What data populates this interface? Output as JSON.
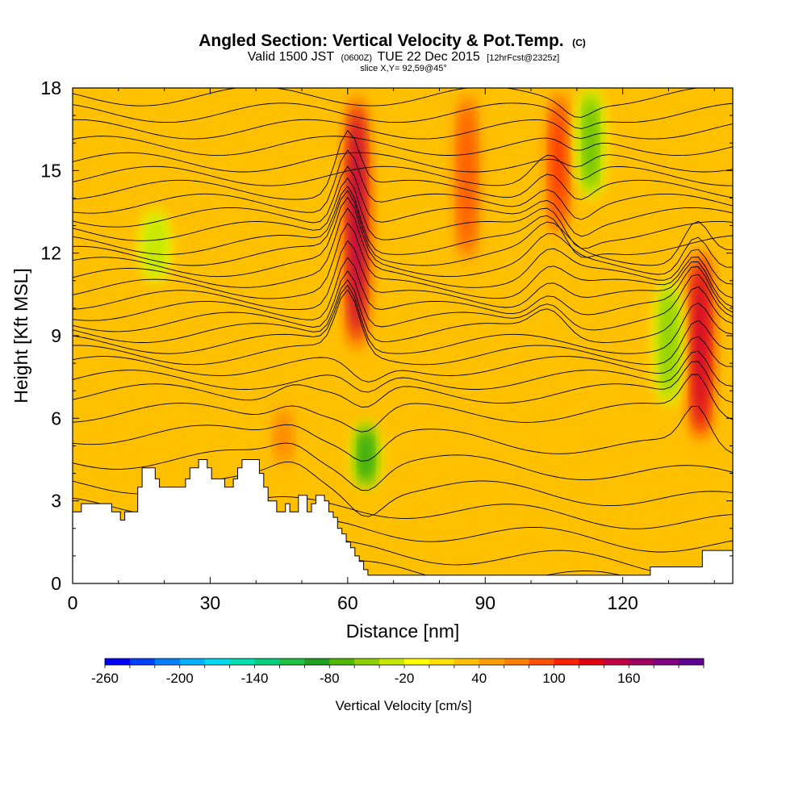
{
  "chart_data": {
    "type": "heatmap",
    "title": "Angled Section: Vertical Velocity & Pot.Temp.",
    "title_suffix": "(C)",
    "subtitle_valid": "Valid 1500 JST",
    "subtitle_utc": "(0600Z)",
    "subtitle_date": "TUE 22 Dec 2015",
    "subtitle_fcst": "[12hrFcst@2325z]",
    "slice": "slice X,Y= 92,59@45°",
    "xlabel": "Distance [nm]",
    "ylabel": "Height [Kft MSL]",
    "xlim": [
      0,
      144
    ],
    "ylim": [
      0,
      18
    ],
    "xticks": [
      0,
      30,
      60,
      90,
      120
    ],
    "yticks": [
      0,
      3,
      6,
      9,
      12,
      15,
      18
    ],
    "colorbar_label": "Vertical Velocity [cm/s]",
    "colorbar_min": -260,
    "colorbar_step": 20,
    "colorbar_ticks": [
      -260,
      -200,
      -140,
      -80,
      -20,
      40,
      100,
      160
    ],
    "colorbar_colors": [
      "#0000ff",
      "#0040ff",
      "#0080ff",
      "#00b0ff",
      "#00d8f0",
      "#00e0b0",
      "#00d080",
      "#20c040",
      "#20a020",
      "#50b800",
      "#90d000",
      "#c8e800",
      "#ffff00",
      "#ffe000",
      "#ffc000",
      "#ffa000",
      "#ff8000",
      "#ff5000",
      "#ff2000",
      "#e00010",
      "#c00040",
      "#a00060",
      "#800080",
      "#600090"
    ],
    "vertical_velocity_cores": [
      {
        "x": 62,
        "top": 18,
        "bottom": 8.2,
        "peak": 160
      },
      {
        "x": 106,
        "top": 18,
        "bottom": 12.5,
        "peak": 100
      },
      {
        "x": 86,
        "top": 18,
        "bottom": 11.5,
        "peak": 80
      },
      {
        "x": 137,
        "top": 12.3,
        "bottom": 5.0,
        "peak": 140
      },
      {
        "x": 46,
        "top": 6.5,
        "bottom": 4.2,
        "peak": 60
      },
      {
        "x": 64,
        "top": 5.8,
        "bottom": 3.5,
        "peak": -100
      },
      {
        "x": 113,
        "top": 18,
        "bottom": 14,
        "peak": -80
      },
      {
        "x": 130,
        "top": 11,
        "bottom": 6.5,
        "peak": -60
      },
      {
        "x": 18,
        "top": 13.5,
        "bottom": 11,
        "peak": -40
      }
    ],
    "terrain_height": [
      2.6,
      2.6,
      2.9,
      2.9,
      2.9,
      2.9,
      2.9,
      2.9,
      2.9,
      2.6,
      2.6,
      2.3,
      2.6,
      2.6,
      2.6,
      3.5,
      4.2,
      4.2,
      4.2,
      3.8,
      3.5,
      3.5,
      3.5,
      3.5,
      3.5,
      3.5,
      3.8,
      4.2,
      4.2,
      4.5,
      4.5,
      4.2,
      3.8,
      3.8,
      3.8,
      3.5,
      3.5,
      3.8,
      4.2,
      4.5,
      4.5,
      4.5,
      4.5,
      4.0,
      3.5,
      3.0,
      3.0,
      2.6,
      2.6,
      2.9,
      2.6,
      2.6,
      3.2,
      3.2,
      2.6,
      2.9,
      3.2,
      3.2,
      3.0,
      2.6,
      2.4,
      2.0,
      1.8,
      1.5,
      1.3,
      1.0,
      0.8,
      0.5,
      0.3,
      0.3,
      0.3,
      0.3,
      0.3,
      0.3,
      0.3,
      0.3,
      0.3,
      0.3,
      0.3,
      0.3,
      0.3,
      0.3,
      0.3,
      0.3,
      0.3,
      0.3,
      0.3,
      0.3,
      0.3,
      0.3,
      0.3,
      0.3,
      0.3,
      0.3,
      0.3,
      0.3,
      0.3,
      0.3,
      0.3,
      0.3,
      0.3,
      0.3,
      0.3,
      0.3,
      0.3,
      0.3,
      0.3,
      0.3,
      0.3,
      0.3,
      0.3,
      0.3,
      0.3,
      0.3,
      0.3,
      0.3,
      0.3,
      0.3,
      0.3,
      0.3,
      0.3,
      0.3,
      0.3,
      0.3,
      0.3,
      0.3,
      0.3,
      0.3,
      0.3,
      0.3,
      0.3,
      0.3,
      0.3,
      0.6,
      0.6,
      0.6,
      0.6,
      0.6,
      0.6,
      0.6,
      0.6,
      0.6,
      0.6,
      0.6,
      0.6,
      1.2,
      1.2,
      1.2,
      1.2,
      1.2,
      1.2,
      1.2
    ],
    "isentrope_base_heights": [
      0.5,
      1.2,
      2.0,
      2.8,
      3.6,
      4.5,
      5.4,
      6.2,
      6.9,
      7.4,
      7.9,
      8.3,
      8.7,
      9.1,
      9.5,
      9.9,
      10.3,
      10.7,
      11.1,
      11.5,
      11.9,
      12.3,
      12.8,
      13.3,
      13.8,
      14.3,
      14.8,
      15.3,
      15.9,
      16.5,
      17.1,
      17.7
    ]
  }
}
